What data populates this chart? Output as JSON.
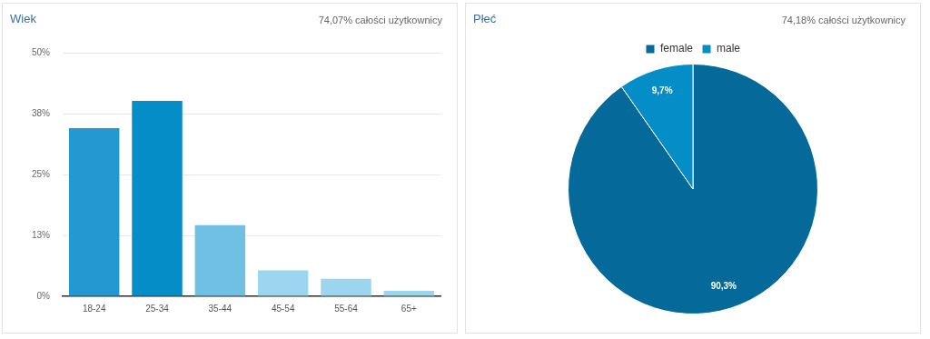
{
  "chart_data": [
    {
      "type": "bar",
      "title": "Wiek",
      "subtitle": "74,07% całości użytkownicy",
      "categories": [
        "18-24",
        "25-34",
        "35-44",
        "45-54",
        "55-64",
        "65+"
      ],
      "values": [
        34.5,
        40.1,
        14.6,
        5.3,
        3.6,
        1.1
      ],
      "colors": [
        "#2499d1",
        "#058dc7",
        "#6fc0e3",
        "#9dd5ee",
        "#9dd5ee",
        "#9dd5ee"
      ],
      "ylim": [
        0,
        50
      ],
      "yticks": [
        {
          "value": 0,
          "label": "0%"
        },
        {
          "value": 12.5,
          "label": "13%"
        },
        {
          "value": 25,
          "label": "25%"
        },
        {
          "value": 37.5,
          "label": "38%"
        },
        {
          "value": 50,
          "label": "50%"
        }
      ],
      "grid": "y",
      "legend": false
    },
    {
      "type": "pie",
      "title": "Płeć",
      "subtitle": "74,18% całości użytkownicy",
      "categories": [
        "female",
        "male"
      ],
      "values": [
        90.3,
        9.7
      ],
      "colors": [
        "#056a99",
        "#058dc7"
      ],
      "value_labels": [
        "90,3%",
        "9,7%"
      ],
      "legend": "top"
    }
  ]
}
